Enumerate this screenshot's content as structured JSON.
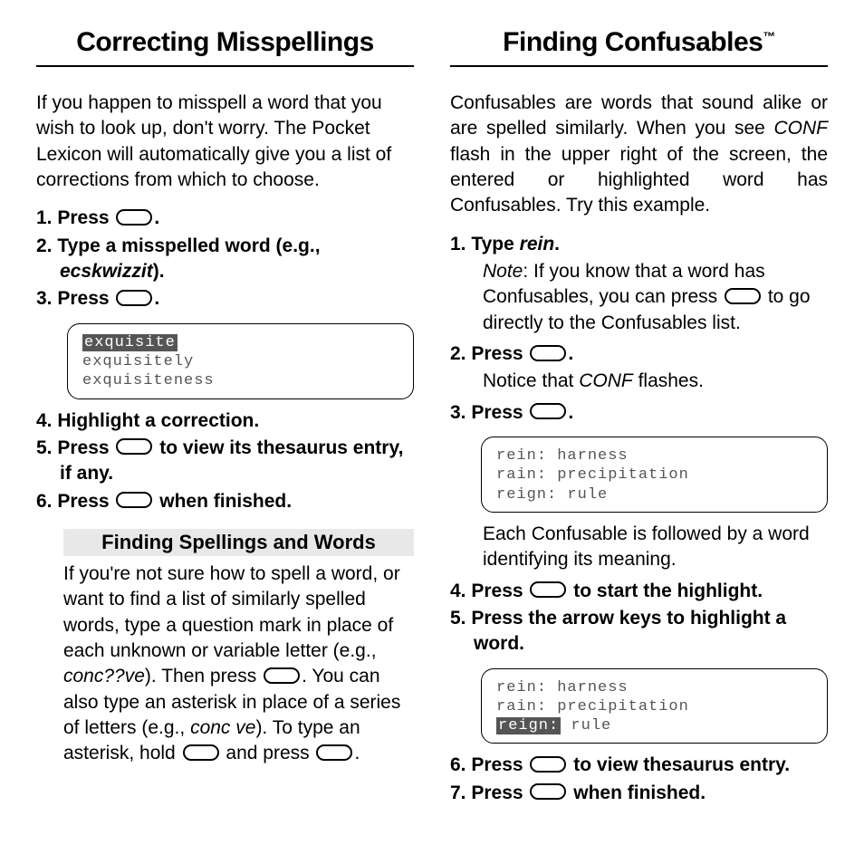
{
  "left": {
    "title": "Correcting Misspellings",
    "intro": "If you happen to misspell a word that you wish to look up, don't worry. The Pocket Lexicon will automatically give you a list of corrections from which to choose.",
    "steps": {
      "s1a": "1. Press ",
      "s1b": ".",
      "s2a": "2. Type a misspelled word (e.g., ",
      "s2_em": "ecskwizzit",
      "s2b": ").",
      "s3a": "3. Press ",
      "s3b": ".",
      "s4": "4. Highlight a correction.",
      "s5a": "5. Press ",
      "s5b": " to view its thesaurus entry, if any.",
      "s6a": "6. Press ",
      "s6b": " when finished."
    },
    "lcd1": {
      "l1": "exquisite",
      "l2": "exquisitely",
      "l3": "exquisiteness"
    },
    "sub_title": "Finding Spellings and Words",
    "sub_p1": "If you're not sure how to spell a word, or want to find a list of similarly spelled words, type a question mark in place of each unknown or variable letter (e.g., ",
    "sub_em1": "conc??ve",
    "sub_p2": "). Then press ",
    "sub_p3": ". You can also type an asterisk in place of a series of letters (e.g., ",
    "sub_em2": "conc  ve",
    "sub_p4": "). To type an asterisk, hold ",
    "sub_p5": " and press ",
    "sub_p6": "."
  },
  "right": {
    "title": "Finding Confusables",
    "tm": "™",
    "intro_a": "Confusables are words that sound alike or are spelled similarly. When you see ",
    "intro_conf": "CONF",
    "intro_b": " flash in the upper right of the screen, the entered or highlighted word has Confusables. Try this example.",
    "s1a": "1. Type ",
    "s1_em": "rein",
    "s1b": ".",
    "note_a": "Note",
    "note_b": ": If you know that a word has Confusables, you can press ",
    "note_c": " to go directly to the Confusables list.",
    "s2a": "2. Press ",
    "s2b": ".",
    "s2_sub_a": "Notice that ",
    "s2_sub_conf": "CONF",
    "s2_sub_b": " flashes.",
    "s3a": "3. Press ",
    "s3b": ".",
    "lcd2": {
      "l1": "rein: harness",
      "l2": "rain: precipitation",
      "l3": "reign: rule"
    },
    "s3_sub": "Each Confusable is followed by a word identifying its meaning.",
    "s4a": "4. Press ",
    "s4b": " to start the highlight.",
    "s5": "5. Press the arrow keys to highlight a word.",
    "lcd3": {
      "l1": "rein: harness",
      "l2": "rain: precipitation",
      "l3a": "reign:",
      "l3b": " rule"
    },
    "s6a": "6. Press ",
    "s6b": " to view thesaurus entry.",
    "s7a": "7. Press ",
    "s7b": " when finished."
  }
}
